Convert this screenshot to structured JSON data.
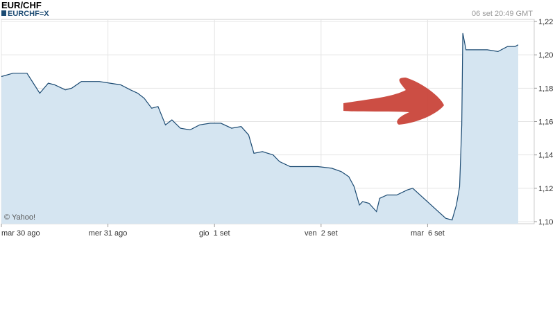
{
  "chart_data": {
    "type": "area",
    "title": "EUR/CHF",
    "timestamp": "06 set 20:49 GMT",
    "credit": "© Yahoo!",
    "series": [
      {
        "name": "EURCHF=X",
        "color": "#1b4a72",
        "fill": "#d5e5f1",
        "x": [
          0,
          0.11,
          0.24,
          0.31,
          0.36,
          0.44,
          0.5,
          0.6,
          0.66,
          0.75,
          0.82,
          0.92,
          1.02,
          1.12,
          1.21,
          1.28,
          1.34,
          1.41,
          1.47,
          1.54,
          1.6,
          1.68,
          1.77,
          1.86,
          1.96,
          2.06,
          2.16,
          2.25,
          2.32,
          2.37,
          2.45,
          2.55,
          2.61,
          2.71,
          2.84,
          2.97,
          3.1,
          3.19,
          3.26,
          3.31,
          3.36,
          3.39,
          3.45,
          3.52,
          3.55,
          3.62,
          3.71,
          3.81,
          3.86,
          4.17,
          4.23,
          4.27,
          4.3,
          4.32,
          4.33,
          4.36,
          4.46,
          4.56,
          4.66,
          4.75,
          4.82,
          4.85
        ],
        "values": [
          1.187,
          1.189,
          1.189,
          1.182,
          1.177,
          1.183,
          1.182,
          1.179,
          1.18,
          1.184,
          1.184,
          1.184,
          1.183,
          1.182,
          1.179,
          1.177,
          1.174,
          1.168,
          1.169,
          1.158,
          1.161,
          1.156,
          1.155,
          1.158,
          1.159,
          1.159,
          1.156,
          1.157,
          1.152,
          1.141,
          1.142,
          1.14,
          1.136,
          1.133,
          1.133,
          1.133,
          1.132,
          1.13,
          1.127,
          1.121,
          1.11,
          1.112,
          1.111,
          1.106,
          1.114,
          1.116,
          1.116,
          1.119,
          1.12,
          1.102,
          1.101,
          1.11,
          1.121,
          1.158,
          1.213,
          1.203,
          1.203,
          1.203,
          1.202,
          1.205,
          1.205,
          1.206
        ]
      }
    ],
    "xlim": [
      0,
      5
    ],
    "xticks": [
      {
        "value": 0,
        "label": "mar 30 ago"
      },
      {
        "value": 1,
        "label": "mer 31 ago"
      },
      {
        "value": 2,
        "label": "gio  1 set"
      },
      {
        "value": 3,
        "label": "ven  2 set"
      },
      {
        "value": 4,
        "label": "mar  6 set"
      }
    ],
    "ylim": [
      1.1,
      1.22
    ],
    "yticks": [
      {
        "value": 1.1,
        "label": "1,10"
      },
      {
        "value": 1.12,
        "label": "1,12"
      },
      {
        "value": 1.14,
        "label": "1,14"
      },
      {
        "value": 1.16,
        "label": "1,16"
      },
      {
        "value": 1.18,
        "label": "1,18"
      },
      {
        "value": 1.2,
        "label": "1,20"
      },
      {
        "value": 1.22,
        "label": "1,22"
      }
    ],
    "grid": true
  }
}
